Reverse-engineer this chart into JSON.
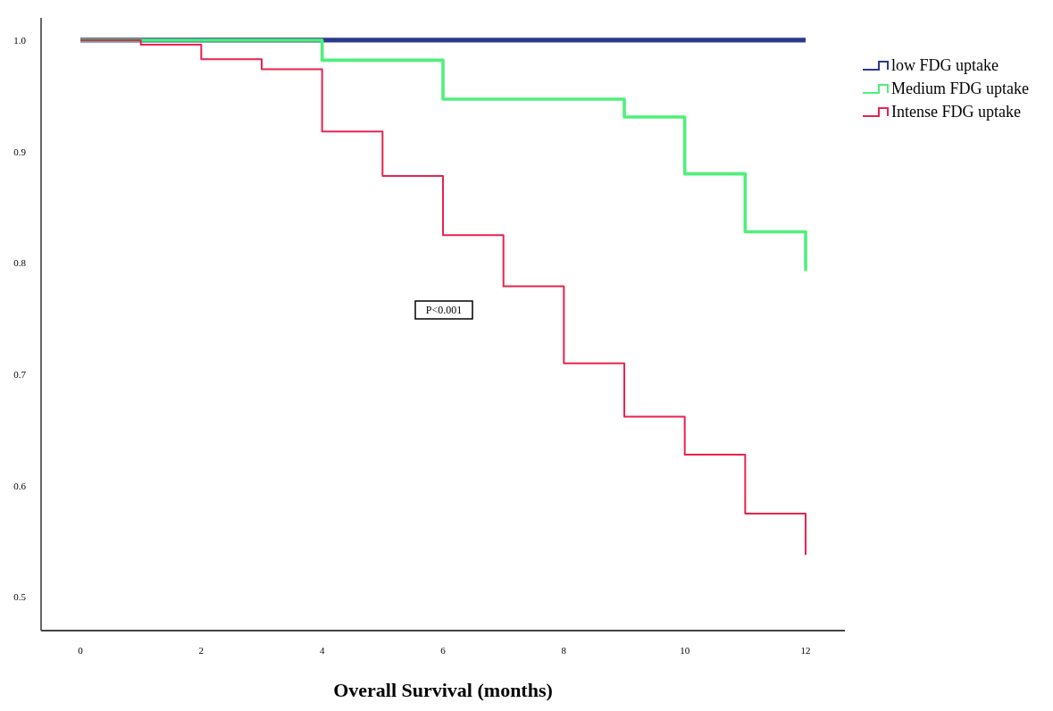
{
  "chart_data": {
    "type": "step",
    "xlabel": "Overall Survival (months)",
    "xlim": [
      -0.65,
      12.65
    ],
    "xticks": [
      0,
      2,
      4,
      6,
      8,
      10,
      12
    ],
    "ylim": [
      0.47,
      1.02
    ],
    "yticks": [
      {
        "value": 0.5,
        "label": "0.5"
      },
      {
        "value": 0.6,
        "label": "0.6"
      },
      {
        "value": 0.7,
        "label": "0.7"
      },
      {
        "value": 0.8,
        "label": "0.8"
      },
      {
        "value": 0.9,
        "label": "0.9"
      },
      {
        "value": 1.0,
        "label": "1.0"
      }
    ],
    "grid": false,
    "legend": "top right",
    "annotations": [
      "P<0.001"
    ],
    "series": [
      {
        "name": "low FDG uptake",
        "color": "#2b3a8c",
        "x": [
          0,
          12
        ],
        "values": [
          1.0,
          1.0
        ]
      },
      {
        "name": "Medium FDG uptake",
        "color": "#4ef07a",
        "x": [
          0,
          4,
          6,
          9,
          10,
          11,
          12
        ],
        "values": [
          1.0,
          0.982,
          0.947,
          0.931,
          0.88,
          0.828,
          0.793
        ]
      },
      {
        "name": "Intense FDG uptake",
        "color": "#e8234e",
        "x": [
          0,
          1,
          2,
          3,
          4,
          5,
          6,
          7,
          8,
          9,
          10,
          11,
          12
        ],
        "values": [
          1.0,
          0.996,
          0.983,
          0.974,
          0.918,
          0.878,
          0.825,
          0.779,
          0.71,
          0.662,
          0.628,
          0.575,
          0.538
        ]
      }
    ]
  }
}
